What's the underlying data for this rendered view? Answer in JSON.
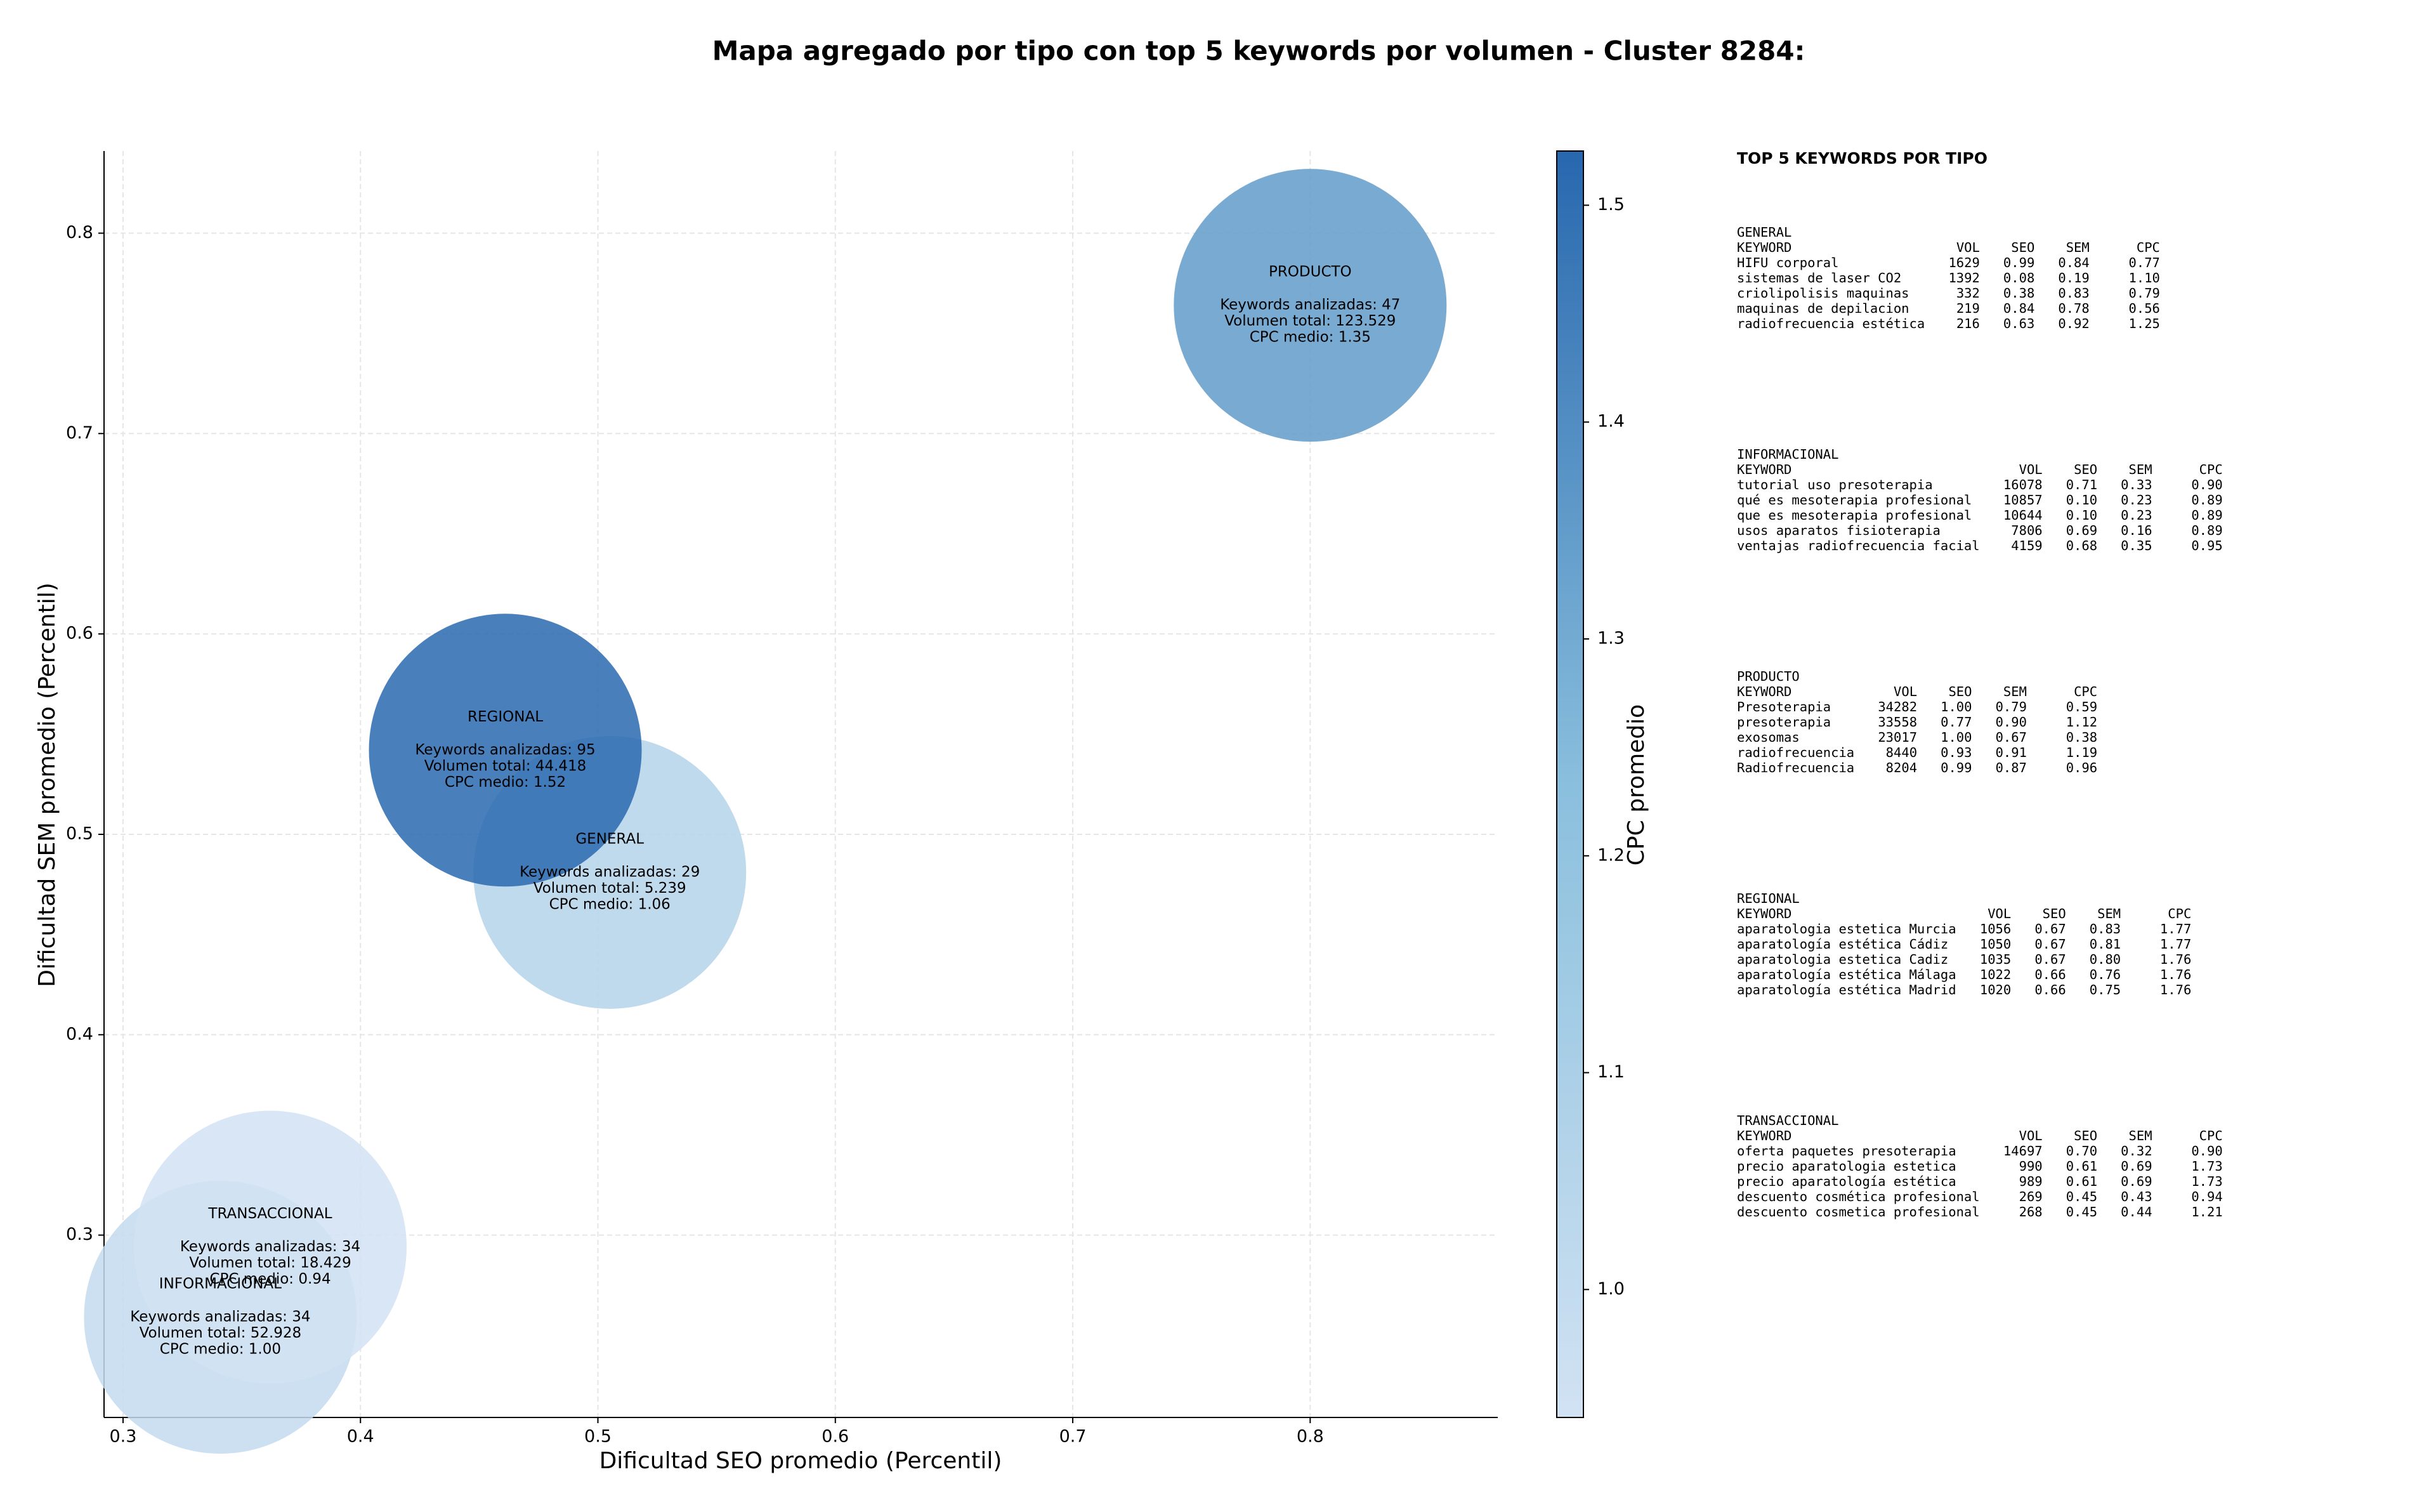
{
  "chart_data": {
    "type": "bubble",
    "title": "Mapa agregado por tipo con top 5 keywords por volumen - Cluster 8284:",
    "x_label": "Dificultad SEO promedio (Percentil)",
    "y_label": "Dificultad SEM promedio (Percentil)",
    "colorbar_label": "CPC promedio",
    "categories": [
      "GENERAL",
      "INFORMACIONAL",
      "PRODUCTO",
      "REGIONAL",
      "TRANSACCIONAL"
    ],
    "x": [
      0.505,
      0.341,
      0.8,
      0.461,
      0.362
    ],
    "values": [
      0.481,
      0.259,
      0.764,
      0.542,
      0.294
    ],
    "cpc": [
      1.06,
      1.0,
      1.35,
      1.52,
      0.94
    ],
    "annotations": [
      [
        "Keywords analizadas: 29",
        "Volumen total: 5.239",
        "CPC medio: 1.06"
      ],
      [
        "Keywords analizadas: 34",
        "Volumen total: 52.928",
        "CPC medio: 1.00"
      ],
      [
        "Keywords analizadas: 47",
        "Volumen total: 123.529",
        "CPC medio: 1.35"
      ],
      [
        "Keywords analizadas: 95",
        "Volumen total: 44.418",
        "CPC medio: 1.52"
      ],
      [
        "Keywords analizadas: 34",
        "Volumen total: 18.429",
        "CPC medio: 0.94"
      ]
    ],
    "xlim": [
      0.292,
      0.879
    ],
    "ylim": [
      0.209,
      0.841
    ],
    "xticks": [
      0.3,
      0.4,
      0.5,
      0.6,
      0.7,
      0.8
    ],
    "yticks": [
      0.3,
      0.4,
      0.5,
      0.6,
      0.7,
      0.8
    ],
    "clim": [
      0.941,
      1.525
    ],
    "cticks": [
      {
        "value": 1,
        "label": "1.0"
      },
      1.1,
      1.2,
      1.3,
      1.4,
      1.5
    ],
    "colormap": [
      "#d1e2f3",
      "#8abfdd",
      "#2767ae"
    ],
    "grid": true
  },
  "keyword_tables": {
    "title": "TOP 5 KEYWORDS POR TIPO",
    "groups": [
      {
        "name": "GENERAL",
        "header": [
          "KEYWORD",
          "VOL",
          "SEO",
          "SEM",
          "CPC"
        ],
        "rows": [
          [
            "HIFU corporal",
            "1629",
            "0.99",
            "0.84",
            "0.77"
          ],
          [
            "sistemas de laser CO2",
            "1392",
            "0.08",
            "0.19",
            "1.10"
          ],
          [
            "criolipolisis maquinas",
            "332",
            "0.38",
            "0.83",
            "0.79"
          ],
          [
            "maquinas de depilacion",
            "219",
            "0.84",
            "0.78",
            "0.56"
          ],
          [
            "radiofrecuencia estética",
            "216",
            "0.63",
            "0.92",
            "1.25"
          ]
        ]
      },
      {
        "name": "INFORMACIONAL",
        "header": [
          "KEYWORD",
          "VOL",
          "SEO",
          "SEM",
          "CPC"
        ],
        "rows": [
          [
            "tutorial uso presoterapia",
            "16078",
            "0.71",
            "0.33",
            "0.90"
          ],
          [
            "qué es mesoterapia profesional",
            "10857",
            "0.10",
            "0.23",
            "0.89"
          ],
          [
            "que es mesoterapia profesional",
            "10644",
            "0.10",
            "0.23",
            "0.89"
          ],
          [
            "usos aparatos fisioterapia",
            "7806",
            "0.69",
            "0.16",
            "0.89"
          ],
          [
            "ventajas radiofrecuencia facial",
            "4159",
            "0.68",
            "0.35",
            "0.95"
          ]
        ]
      },
      {
        "name": "PRODUCTO",
        "header": [
          "KEYWORD",
          "VOL",
          "SEO",
          "SEM",
          "CPC"
        ],
        "rows": [
          [
            "Presoterapia",
            "34282",
            "1.00",
            "0.79",
            "0.59"
          ],
          [
            "presoterapia",
            "33558",
            "0.77",
            "0.90",
            "1.12"
          ],
          [
            "exosomas",
            "23017",
            "1.00",
            "0.67",
            "0.38"
          ],
          [
            "radiofrecuencia",
            "8440",
            "0.93",
            "0.91",
            "1.19"
          ],
          [
            "Radiofrecuencia",
            "8204",
            "0.99",
            "0.87",
            "0.96"
          ]
        ]
      },
      {
        "name": "REGIONAL",
        "header": [
          "KEYWORD",
          "VOL",
          "SEO",
          "SEM",
          "CPC"
        ],
        "rows": [
          [
            "aparatologia estetica Murcia",
            "1056",
            "0.67",
            "0.83",
            "1.77"
          ],
          [
            "aparatología estética Cádiz",
            "1050",
            "0.67",
            "0.81",
            "1.77"
          ],
          [
            "aparatologia estetica Cadiz",
            "1035",
            "0.67",
            "0.80",
            "1.76"
          ],
          [
            "aparatología estética Málaga",
            "1022",
            "0.66",
            "0.76",
            "1.76"
          ],
          [
            "aparatología estética Madrid",
            "1020",
            "0.66",
            "0.75",
            "1.76"
          ]
        ]
      },
      {
        "name": "TRANSACCIONAL",
        "header": [
          "KEYWORD",
          "VOL",
          "SEO",
          "SEM",
          "CPC"
        ],
        "rows": [
          [
            "oferta paquetes presoterapia",
            "14697",
            "0.70",
            "0.32",
            "0.90"
          ],
          [
            "precio aparatologia estetica",
            "990",
            "0.61",
            "0.69",
            "1.73"
          ],
          [
            "precio aparatología estética",
            "989",
            "0.61",
            "0.69",
            "1.73"
          ],
          [
            "descuento cosmética profesional",
            "269",
            "0.45",
            "0.43",
            "0.94"
          ],
          [
            "descuento cosmetica profesional",
            "268",
            "0.45",
            "0.44",
            "1.21"
          ]
        ]
      }
    ]
  }
}
